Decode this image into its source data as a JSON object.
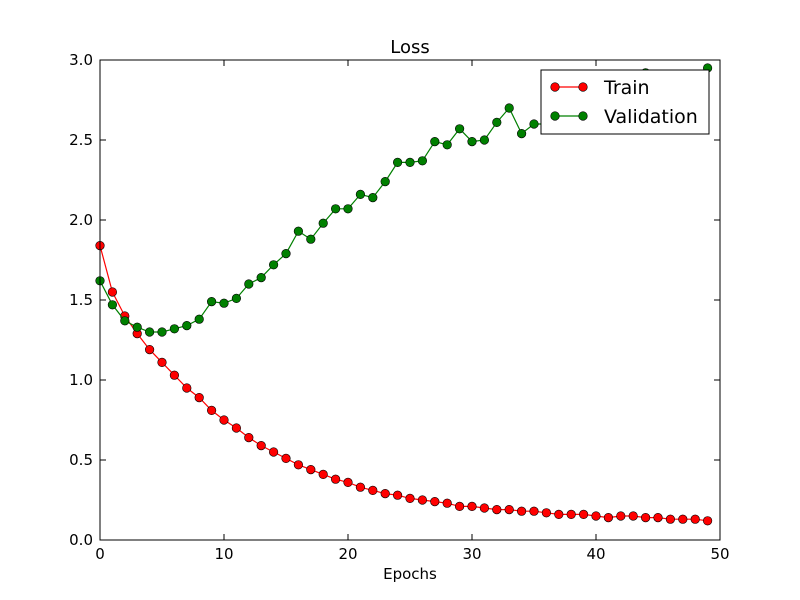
{
  "chart_data": {
    "type": "line",
    "title": "Loss",
    "xlabel": "Epochs",
    "ylabel": "",
    "xlim": [
      0,
      50
    ],
    "ylim": [
      0.0,
      3.0
    ],
    "xticks": [
      "0",
      "10",
      "20",
      "30",
      "40",
      "50"
    ],
    "yticks": [
      "0.0",
      "0.5",
      "1.0",
      "1.5",
      "2.0",
      "2.5",
      "3.0"
    ],
    "grid": false,
    "legend_position": "upper-right",
    "x": [
      0,
      1,
      2,
      3,
      4,
      5,
      6,
      7,
      8,
      9,
      10,
      11,
      12,
      13,
      14,
      15,
      16,
      17,
      18,
      19,
      20,
      21,
      22,
      23,
      24,
      25,
      26,
      27,
      28,
      29,
      30,
      31,
      32,
      33,
      34,
      35,
      36,
      37,
      38,
      39,
      40,
      41,
      42,
      43,
      44,
      45,
      46,
      47,
      48,
      49
    ],
    "series": [
      {
        "name": "Train",
        "color": "#ff0000",
        "values": [
          1.84,
          1.55,
          1.4,
          1.29,
          1.19,
          1.11,
          1.03,
          0.95,
          0.89,
          0.81,
          0.75,
          0.7,
          0.64,
          0.59,
          0.55,
          0.51,
          0.47,
          0.44,
          0.41,
          0.38,
          0.36,
          0.33,
          0.31,
          0.29,
          0.28,
          0.26,
          0.25,
          0.24,
          0.23,
          0.21,
          0.21,
          0.2,
          0.19,
          0.19,
          0.18,
          0.18,
          0.17,
          0.16,
          0.16,
          0.16,
          0.15,
          0.14,
          0.15,
          0.15,
          0.14,
          0.14,
          0.13,
          0.13,
          0.13,
          0.12
        ]
      },
      {
        "name": "Validation",
        "color": "#008000",
        "values": [
          1.62,
          1.47,
          1.37,
          1.33,
          1.3,
          1.3,
          1.32,
          1.34,
          1.38,
          1.49,
          1.48,
          1.51,
          1.6,
          1.64,
          1.72,
          1.79,
          1.93,
          1.88,
          1.98,
          2.07,
          2.07,
          2.16,
          2.14,
          2.24,
          2.36,
          2.36,
          2.37,
          2.49,
          2.47,
          2.57,
          2.49,
          2.5,
          2.61,
          2.7,
          2.54,
          2.6,
          2.6,
          2.62,
          2.63,
          2.7,
          2.71,
          2.78,
          2.81,
          2.82,
          2.92,
          2.79,
          2.84,
          2.88,
          2.88,
          2.95
        ]
      }
    ]
  }
}
